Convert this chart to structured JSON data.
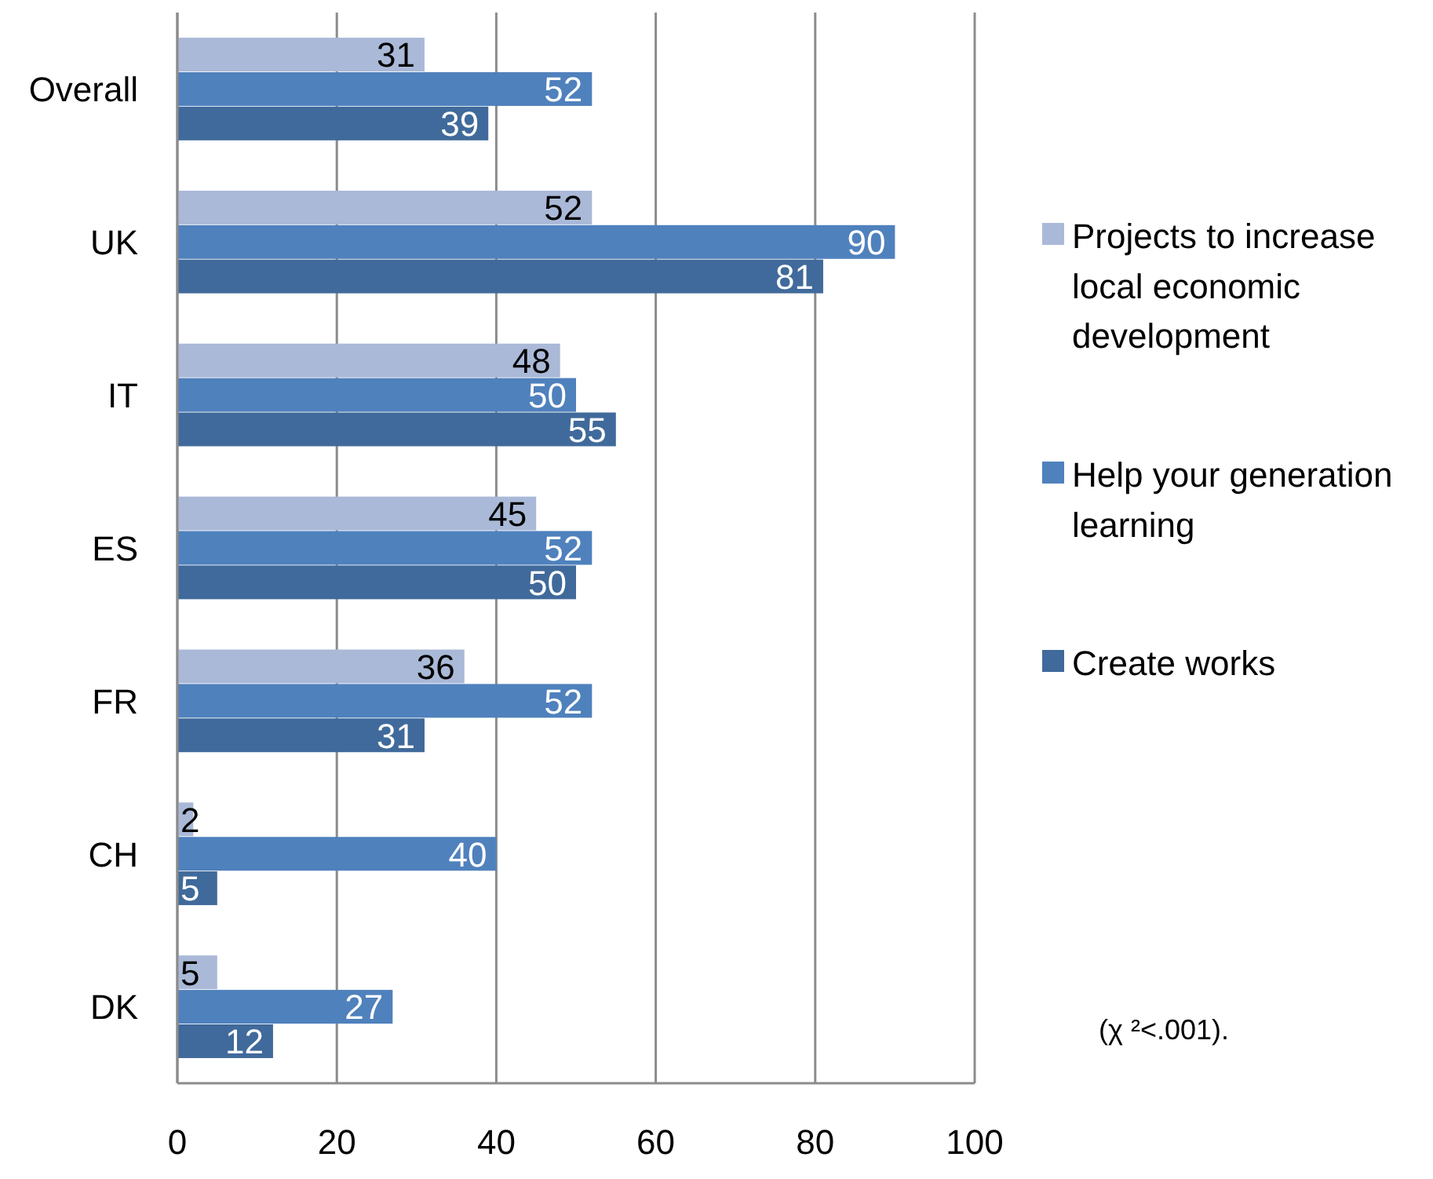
{
  "chart_data": {
    "type": "bar",
    "orientation": "horizontal",
    "categories": [
      "Overall",
      "UK",
      "IT",
      "ES",
      "FR",
      "CH",
      "DK"
    ],
    "series": [
      {
        "name": "Projects to increase local economic development",
        "color": "#aab9d7",
        "values": [
          31,
          52,
          48,
          45,
          36,
          2,
          5
        ]
      },
      {
        "name": "Help your generation learning",
        "color": "#4f81bd",
        "values": [
          52,
          90,
          50,
          52,
          52,
          40,
          27
        ]
      },
      {
        "name": "Create works",
        "color": "#406a9b",
        "values": [
          39,
          81,
          55,
          50,
          31,
          5,
          12
        ]
      }
    ],
    "xlim": [
      0,
      100
    ],
    "xticks": [
      0,
      20,
      40,
      60,
      80,
      100
    ],
    "grid": "x",
    "legend": "right",
    "data_labels": true,
    "annotations": [
      "(χ ²<.001)."
    ]
  }
}
